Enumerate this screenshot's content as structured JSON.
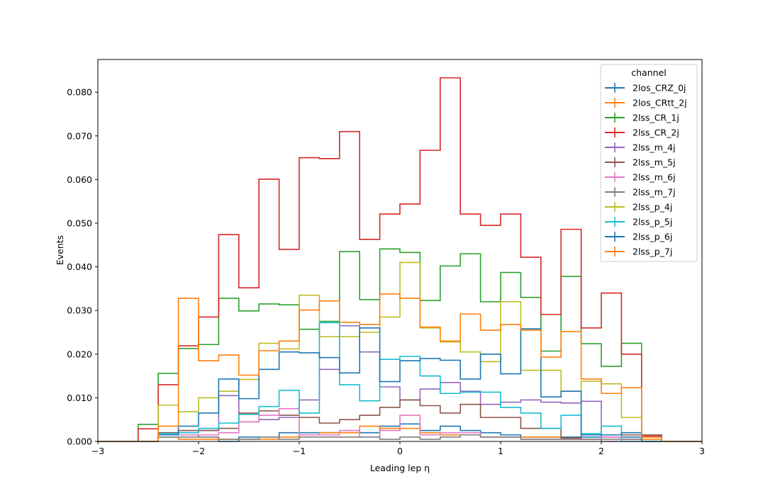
{
  "chart_data": {
    "type": "step-histogram",
    "xlabel": "Leading lep η",
    "ylabel": "Events",
    "xlim": [
      -3,
      3
    ],
    "ylim": [
      0,
      0.0875
    ],
    "xticks": [
      -3,
      -2,
      -1,
      0,
      1,
      2,
      3
    ],
    "xtick_labels": [
      "−3",
      "−2",
      "−1",
      "0",
      "1",
      "2",
      "3"
    ],
    "yticks": [
      0,
      0.01,
      0.02,
      0.03,
      0.04,
      0.05,
      0.06,
      0.07,
      0.08
    ],
    "ytick_labels": [
      "0.000",
      "0.010",
      "0.020",
      "0.030",
      "0.040",
      "0.050",
      "0.060",
      "0.070",
      "0.080"
    ],
    "bin_edges": [
      -3.0,
      -2.8,
      -2.6,
      -2.4,
      -2.2,
      -2.0,
      -1.8,
      -1.6,
      -1.4,
      -1.2,
      -1.0,
      -0.8,
      -0.6,
      -0.4,
      -0.2,
      0.0,
      0.2,
      0.4,
      0.6,
      0.8,
      1.0,
      1.2,
      1.4,
      1.6,
      1.8,
      2.0,
      2.2,
      2.4,
      2.6,
      2.8,
      3.0
    ],
    "grid": false,
    "legend": {
      "title": "channel",
      "placement": "top-right"
    },
    "series": [
      {
        "name": "2los_CRZ_0j",
        "color": "#1f77b4",
        "values": [
          0,
          0,
          0,
          0.0015,
          0.0015,
          0.001,
          0,
          0.001,
          0.001,
          0.002,
          0.002,
          0.002,
          0.002,
          0.002,
          0.0035,
          0.004,
          0.0025,
          0.0035,
          0.0025,
          0.002,
          0.0015,
          0.001,
          0.001,
          0.001,
          0.001,
          0.001,
          0.001,
          0.001,
          0,
          0
        ]
      },
      {
        "name": "2los_CRtt_2j",
        "color": "#ff7f0e",
        "values": [
          0,
          0,
          0,
          0.001,
          0.0005,
          0.0005,
          0.0005,
          0.0005,
          0.0005,
          0.001,
          0.0015,
          0.002,
          0.002,
          0.0035,
          0.003,
          0.003,
          0.002,
          0.0015,
          0.0015,
          0.001,
          0.001,
          0.001,
          0.001,
          0.0005,
          0.0005,
          0.001,
          0.0005,
          0.0005,
          0,
          0
        ]
      },
      {
        "name": "2lss_CR_1j",
        "color": "#2ca02c",
        "values": [
          0,
          0,
          0.0039,
          0.0156,
          0.0213,
          0.0222,
          0.0328,
          0.0299,
          0.0315,
          0.0313,
          0.0257,
          0.0275,
          0.0435,
          0.0325,
          0.0441,
          0.0433,
          0.0323,
          0.0402,
          0.043,
          0.032,
          0.0387,
          0.033,
          0.0207,
          0.0378,
          0.0224,
          0.0172,
          0.0225,
          0,
          0,
          0
        ]
      },
      {
        "name": "2lss_CR_2j",
        "color": "#d62728",
        "values": [
          0,
          0,
          0.0029,
          0.013,
          0.0219,
          0.0285,
          0.0474,
          0.0352,
          0.0601,
          0.044,
          0.065,
          0.0648,
          0.071,
          0.0463,
          0.0521,
          0.0544,
          0.0667,
          0.0833,
          0.0521,
          0.0495,
          0.0521,
          0.0422,
          0.0291,
          0.0486,
          0.026,
          0.034,
          0.02,
          0.0012,
          0,
          0
        ]
      },
      {
        "name": "2lss_m_4j",
        "color": "#9467bd",
        "values": [
          0,
          0,
          0,
          0.0015,
          0.002,
          0.0025,
          0.0105,
          0.0045,
          0.005,
          0.0055,
          0.0095,
          0.0165,
          0.0265,
          0.0205,
          0.0125,
          0.0095,
          0.012,
          0.0135,
          0.0115,
          0.0085,
          0.009,
          0.0095,
          0.009,
          0.0088,
          0.0092,
          0,
          0,
          0,
          0,
          0
        ]
      },
      {
        "name": "2lss_m_5j",
        "color": "#8c564b",
        "values": [
          0,
          0,
          0,
          0.002,
          0.0025,
          0.0025,
          0.003,
          0.0065,
          0.007,
          0.006,
          0.0055,
          0.0042,
          0.005,
          0.006,
          0.0078,
          0.0095,
          0.0082,
          0.0065,
          0.0085,
          0.0055,
          0.0055,
          0.003,
          0.003,
          0.0008,
          0.0015,
          0.0015,
          0.0015,
          0.0015,
          0,
          0
        ]
      },
      {
        "name": "2lss_m_6j",
        "color": "#e377c2",
        "values": [
          0,
          0,
          0,
          0.0015,
          0.0015,
          0.0015,
          0.002,
          0.0045,
          0.006,
          0.0075,
          0.0015,
          0.0015,
          0.0025,
          0.001,
          0.0025,
          0.006,
          0.0015,
          0.002,
          0.002,
          0.001,
          0.001,
          0.0005,
          0.0005,
          0.0005,
          0.0005,
          0.001,
          0.0005,
          0,
          0,
          0
        ]
      },
      {
        "name": "2lss_m_7j",
        "color": "#7f7f7f",
        "values": [
          0,
          0,
          0,
          0.001,
          0.001,
          0.001,
          0.0005,
          0.0005,
          0.001,
          0.0005,
          0.001,
          0.001,
          0.001,
          0.001,
          0.0005,
          0.001,
          0.0005,
          0.001,
          0.0015,
          0.001,
          0.001,
          0.0005,
          0.0005,
          0.0005,
          0.0005,
          0.0005,
          0.0005,
          0,
          0,
          0
        ]
      },
      {
        "name": "2lss_p_4j",
        "color": "#bcbd22",
        "values": [
          0,
          0,
          0,
          0.0083,
          0.0068,
          0.01,
          0.0115,
          0.0142,
          0.0225,
          0.0212,
          0.0335,
          0.024,
          0.024,
          0.025,
          0.0285,
          0.041,
          0.026,
          0.0228,
          0.0205,
          0.0183,
          0.032,
          0.0163,
          0.0163,
          0.0115,
          0.0138,
          0.0132,
          0.0055,
          0,
          0,
          0
        ]
      },
      {
        "name": "2lss_p_5j",
        "color": "#17becf",
        "values": [
          0,
          0,
          0,
          0.0018,
          0.002,
          0.003,
          0.0042,
          0.0062,
          0.008,
          0.0117,
          0.0065,
          0.0272,
          0.013,
          0.0093,
          0.0188,
          0.0195,
          0.015,
          0.011,
          0.0113,
          0.0113,
          0.0078,
          0.0065,
          0.003,
          0.006,
          0.0018,
          0.0035,
          0,
          0,
          0,
          0
        ]
      },
      {
        "name": "2lss_p_6j",
        "color": "#1f77b4",
        "values": [
          0,
          0,
          0,
          0.0015,
          0.0035,
          0.0065,
          0.0143,
          0.0098,
          0.0165,
          0.0205,
          0.0203,
          0.0192,
          0.0157,
          0.026,
          0.0137,
          0.0185,
          0.019,
          0.0186,
          0.0143,
          0.02,
          0.0155,
          0.0258,
          0.0102,
          0.0115,
          0.0015,
          0.0015,
          0.002,
          0,
          0,
          0
        ]
      },
      {
        "name": "2lss_p_7j",
        "color": "#ff7f0e",
        "values": [
          0,
          0,
          0,
          0.0035,
          0.0328,
          0.0185,
          0.0198,
          0.0152,
          0.0208,
          0.023,
          0.0301,
          0.0322,
          0.0273,
          0.0268,
          0.0338,
          0.0328,
          0.0262,
          0.023,
          0.0292,
          0.0255,
          0.0268,
          0.0255,
          0.0193,
          0.0252,
          0.0143,
          0.011,
          0.0123,
          0.001,
          0,
          0
        ]
      }
    ]
  }
}
